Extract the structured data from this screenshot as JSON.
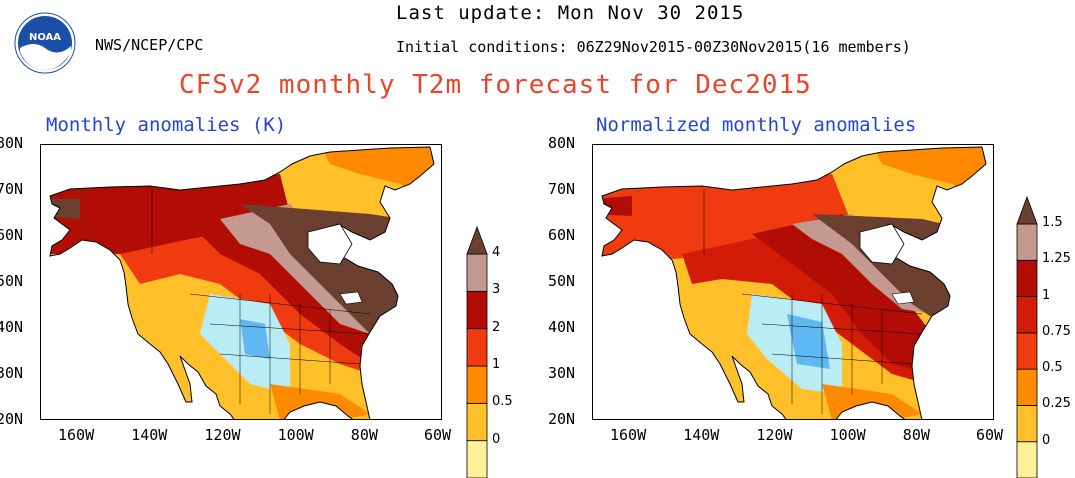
{
  "header": {
    "logo_text": "NOAA",
    "last_update": "Last update: Mon Nov 30 2015",
    "org": "NWS/NCEP/CPC",
    "initial_conditions": "Initial conditions: 06Z29Nov2015-00Z30Nov2015(16 members)",
    "title": "CFSv2 monthly T2m forecast for Dec2015"
  },
  "panels": [
    {
      "title": "Monthly anomalies (K)",
      "lat_labels": [
        "80N",
        "70N",
        "60N",
        "50N",
        "40N",
        "30N",
        "20N"
      ],
      "lon_labels": [
        "160W",
        "140W",
        "120W",
        "100W",
        "80W",
        "60W"
      ],
      "colorbar": {
        "levels": [
          "0",
          "0.5",
          "1",
          "2",
          "3",
          "4"
        ],
        "colors": [
          "#fff09a",
          "#ffc02a",
          "#ff8a00",
          "#f03a10",
          "#b20d05",
          "#c49a90",
          "#6b4030"
        ]
      }
    },
    {
      "title": "Normalized monthly anomalies",
      "lat_labels": [
        "80N",
        "70N",
        "60N",
        "50N",
        "40N",
        "30N",
        "20N"
      ],
      "lon_labels": [
        "160W",
        "140W",
        "120W",
        "100W",
        "80W",
        "60W"
      ],
      "colorbar": {
        "levels": [
          "0",
          "0.25",
          "0.5",
          "0.75",
          "1",
          "1.25",
          "1.5"
        ],
        "colors": [
          "#fff09a",
          "#ffc02a",
          "#ff8a00",
          "#f03a10",
          "#d21c08",
          "#b20d05",
          "#c49a90",
          "#6b4030"
        ]
      }
    }
  ],
  "colors": {
    "title": "#e8452b",
    "panel_title": "#2244dd",
    "cool_light": "#b9ecf5",
    "cool_mid": "#60b8f2",
    "land_edge": "#000000"
  }
}
